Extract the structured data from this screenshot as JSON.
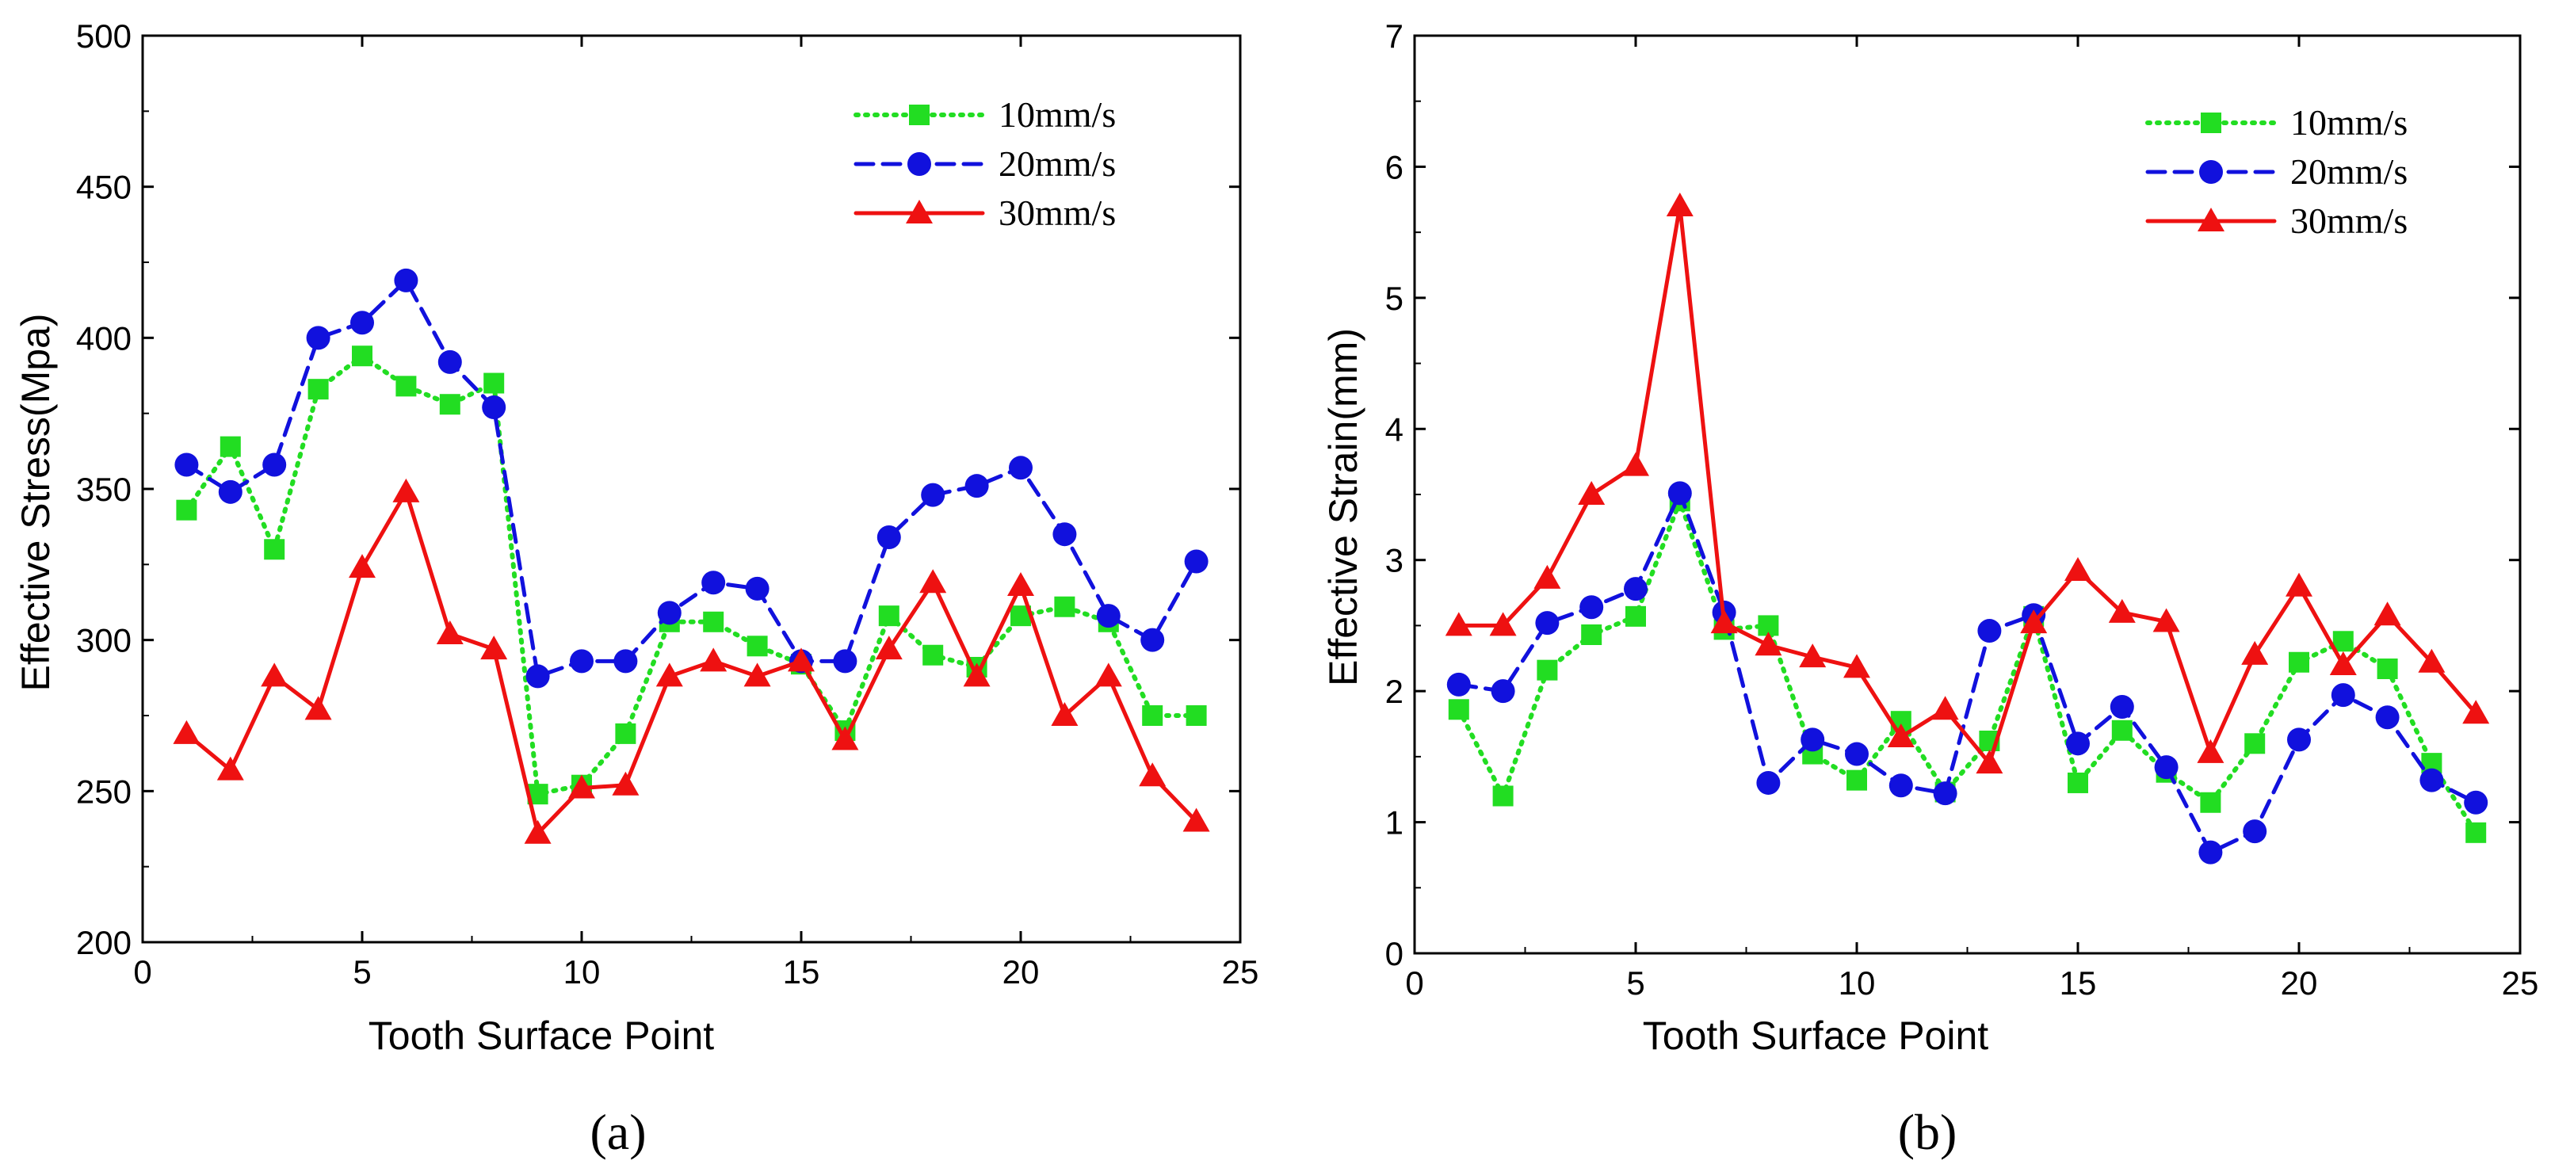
{
  "chart_data": [
    {
      "type": "line",
      "panel_label": "(a)",
      "xlabel": "Tooth Surface Point",
      "ylabel": "Effective Stress(Mpa)",
      "xlim": [
        0,
        25
      ],
      "ylim": [
        200,
        500
      ],
      "xticks": [
        0,
        5,
        10,
        15,
        20,
        25
      ],
      "yticks": [
        200,
        250,
        300,
        350,
        400,
        450,
        500
      ],
      "legend_position": "top-right",
      "x": [
        1,
        2,
        3,
        4,
        5,
        6,
        7,
        8,
        9,
        10,
        11,
        12,
        13,
        14,
        15,
        16,
        17,
        18,
        19,
        20,
        21,
        22,
        23,
        24
      ],
      "series": [
        {
          "name": "10mm/s",
          "color": "#22dd22",
          "marker": "square",
          "line": "dotted",
          "values": [
            343,
            364,
            330,
            383,
            394,
            384,
            378,
            385,
            249,
            252,
            269,
            306,
            306,
            298,
            292,
            270,
            308,
            295,
            291,
            308,
            311,
            306,
            275,
            275
          ]
        },
        {
          "name": "20mm/s",
          "color": "#1111dd",
          "marker": "circle",
          "line": "dashed",
          "values": [
            358,
            349,
            358,
            400,
            405,
            419,
            392,
            377,
            288,
            293,
            293,
            309,
            319,
            317,
            293,
            293,
            334,
            348,
            351,
            357,
            335,
            308,
            300,
            326
          ]
        },
        {
          "name": "30mm/s",
          "color": "#ee1111",
          "marker": "triangle",
          "line": "solid",
          "values": [
            269,
            257,
            288,
            277,
            324,
            349,
            302,
            297,
            236,
            251,
            252,
            288,
            293,
            288,
            293,
            267,
            297,
            319,
            288,
            318,
            275,
            288,
            255,
            240
          ]
        }
      ]
    },
    {
      "type": "line",
      "panel_label": "(b)",
      "xlabel": "Tooth Surface Point",
      "ylabel": "Effective Strain(mm)",
      "xlim": [
        0,
        25
      ],
      "ylim": [
        0,
        7
      ],
      "xticks": [
        0,
        5,
        10,
        15,
        20,
        25
      ],
      "yticks": [
        0,
        1,
        2,
        3,
        4,
        5,
        6,
        7
      ],
      "legend_position": "top-right",
      "x": [
        1,
        2,
        3,
        4,
        5,
        6,
        7,
        8,
        9,
        10,
        11,
        12,
        13,
        14,
        15,
        16,
        17,
        18,
        19,
        20,
        21,
        22,
        23,
        24
      ],
      "series": [
        {
          "name": "10mm/s",
          "color": "#22dd22",
          "marker": "square",
          "line": "dotted",
          "values": [
            1.86,
            1.2,
            2.16,
            2.43,
            2.57,
            3.45,
            2.47,
            2.5,
            1.52,
            1.32,
            1.77,
            1.23,
            1.62,
            2.57,
            1.3,
            1.7,
            1.38,
            1.15,
            1.6,
            2.22,
            2.38,
            2.17,
            1.45,
            0.92
          ]
        },
        {
          "name": "20mm/s",
          "color": "#1111dd",
          "marker": "circle",
          "line": "dashed",
          "values": [
            2.05,
            2.0,
            2.52,
            2.64,
            2.78,
            3.51,
            2.6,
            1.3,
            1.63,
            1.52,
            1.28,
            1.22,
            2.46,
            2.58,
            1.6,
            1.88,
            1.42,
            0.77,
            0.93,
            1.63,
            1.97,
            1.8,
            1.32,
            1.15
          ]
        },
        {
          "name": "30mm/s",
          "color": "#ee1111",
          "marker": "triangle",
          "line": "solid",
          "values": [
            2.5,
            2.5,
            2.86,
            3.5,
            3.72,
            5.7,
            2.52,
            2.35,
            2.26,
            2.18,
            1.65,
            1.86,
            1.45,
            2.52,
            2.92,
            2.6,
            2.53,
            1.53,
            2.28,
            2.8,
            2.2,
            2.58,
            2.22,
            1.83
          ]
        }
      ]
    }
  ]
}
